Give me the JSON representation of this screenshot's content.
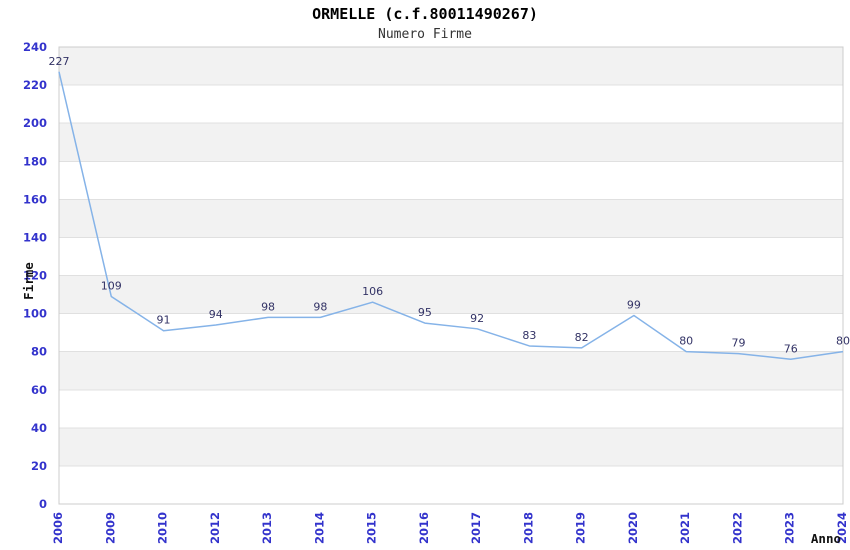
{
  "chart_data": {
    "type": "line",
    "title": "ORMELLE (c.f.80011490267)",
    "subtitle": "Numero Firme",
    "categories": [
      "2006",
      "2009",
      "2010",
      "2012",
      "2013",
      "2014",
      "2015",
      "2016",
      "2017",
      "2018",
      "2019",
      "2020",
      "2021",
      "2022",
      "2023",
      "2024"
    ],
    "values": [
      227,
      109,
      91,
      94,
      98,
      98,
      106,
      95,
      92,
      83,
      82,
      99,
      80,
      79,
      76,
      80
    ],
    "xlabel": "Anno",
    "ylabel": "Firme",
    "ylim": [
      0,
      240
    ],
    "ytick_step": 20,
    "yticks": [
      0,
      20,
      40,
      60,
      80,
      100,
      120,
      140,
      160,
      180,
      200,
      220,
      240
    ],
    "grid": true,
    "legend": "none",
    "band_pattern": "alternating gray/white horizontal bands, gray from 220-240 downward every other band",
    "colors": {
      "line": "#85b3e8",
      "data_label": "#333366",
      "tick_label": "#3333cc",
      "band": "#f2f2f2",
      "gridline": "#e0e0e0",
      "plot_border": "#cccccc",
      "title": "#000000",
      "subtitle": "#333333",
      "axis_label": "#111111",
      "background": "#ffffff"
    }
  }
}
